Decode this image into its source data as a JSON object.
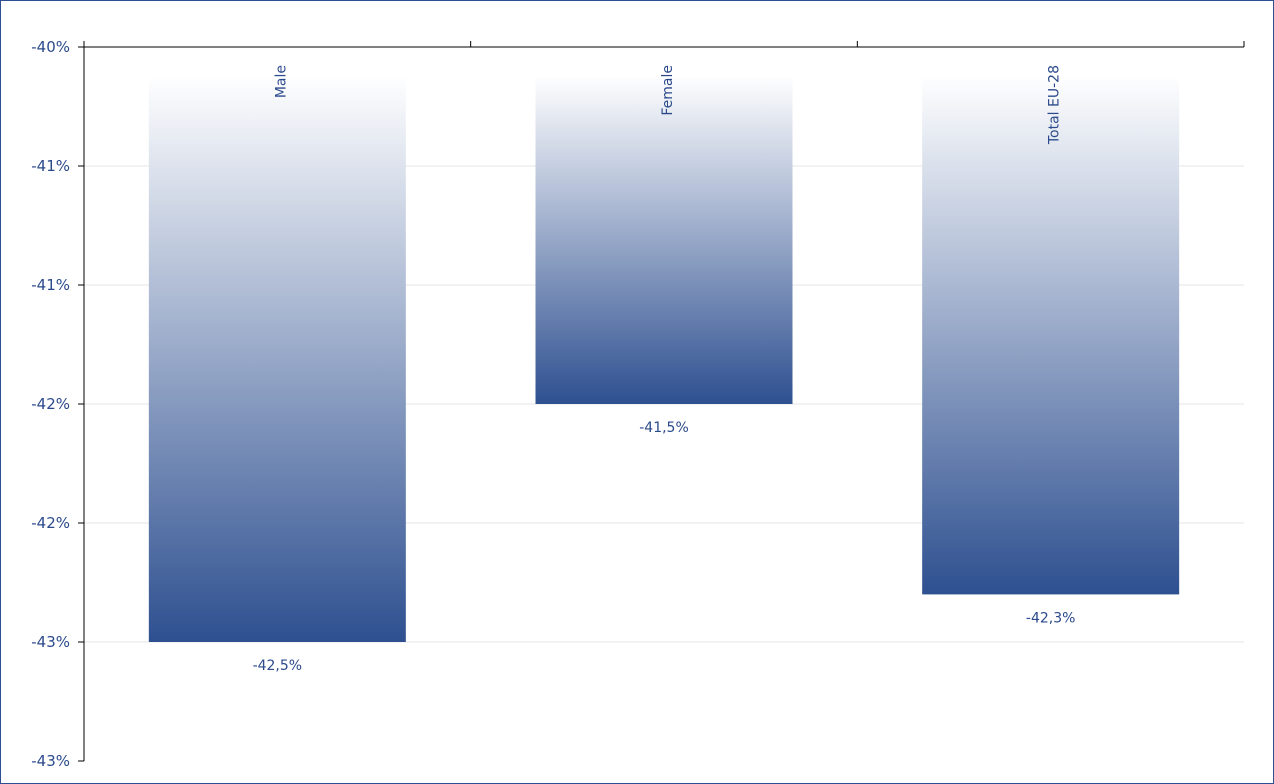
{
  "chart_data": {
    "type": "bar",
    "categories": [
      "Male",
      "Female",
      "Total EU-28"
    ],
    "values": [
      -42.5,
      -41.5,
      -42.3
    ],
    "data_labels": [
      "-42,5%",
      "-41,5%",
      "-42,3%"
    ],
    "y_ticks": [
      {
        "value": -40.0,
        "label": "-40%"
      },
      {
        "value": -40.5,
        "label": "-41%"
      },
      {
        "value": -41.0,
        "label": "-41%"
      },
      {
        "value": -41.5,
        "label": "-42%"
      },
      {
        "value": -42.0,
        "label": "-42%"
      },
      {
        "value": -42.5,
        "label": "-43%"
      },
      {
        "value": -43.0,
        "label": "-43%"
      }
    ],
    "ylim": [
      -43.0,
      -40.0
    ],
    "grid": true,
    "colors": {
      "bar_bottom": "#2e5090",
      "bar_top": "#ffffff",
      "text": "#2b4a8c",
      "axis": "#000000",
      "grid": "#e6e6e6"
    }
  }
}
